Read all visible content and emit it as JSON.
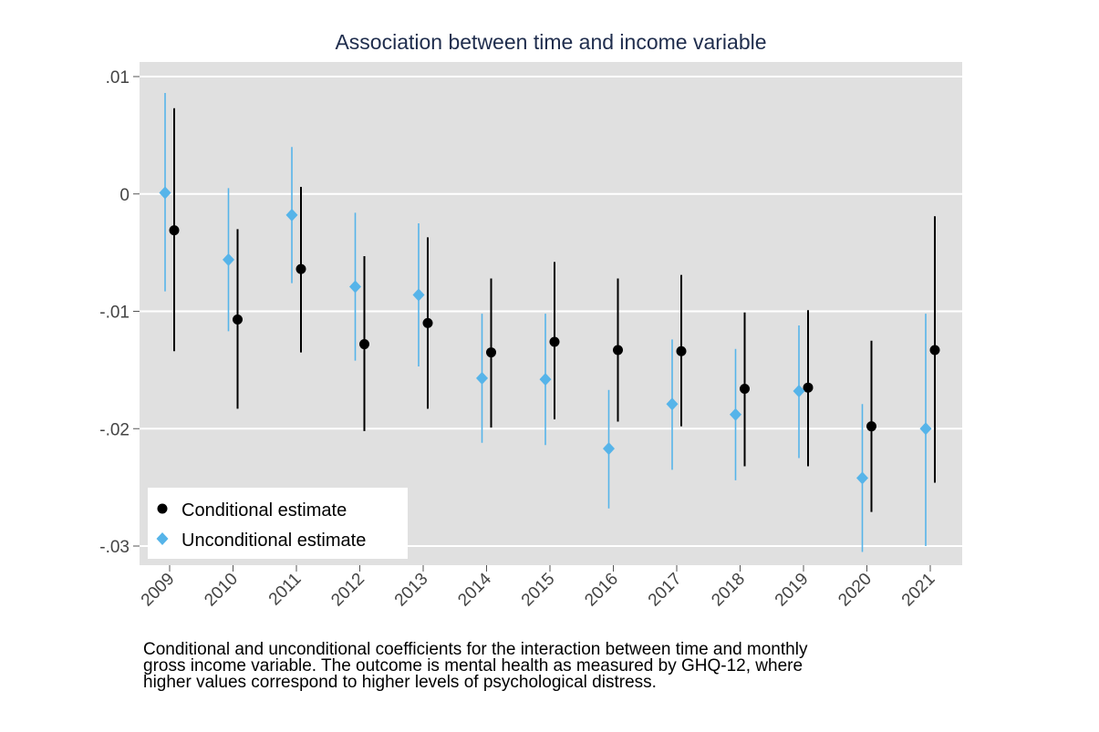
{
  "chart_data": {
    "type": "scatter",
    "title": "Association between time and income variable",
    "xlabel": "",
    "ylabel": "",
    "categories": [
      "2009",
      "2010",
      "2011",
      "2012",
      "2013",
      "2014",
      "2015",
      "2016",
      "2017",
      "2018",
      "2019",
      "2020",
      "2021"
    ],
    "ylim": [
      -0.032,
      0.0115
    ],
    "yticks": [
      0.01,
      0,
      -0.01,
      -0.02,
      -0.03
    ],
    "ytick_labels": [
      ".01",
      "0",
      "-.01",
      "-.02",
      "-.03"
    ],
    "grid": true,
    "legend_position": "bottom-left",
    "series": [
      {
        "name": "Conditional estimate",
        "marker": "circle",
        "color": "#000000",
        "values": [
          -0.0031,
          -0.0107,
          -0.0064,
          -0.0128,
          -0.011,
          -0.0135,
          -0.0126,
          -0.0133,
          -0.0134,
          -0.0166,
          -0.0165,
          -0.0198,
          -0.0133
        ],
        "ci_low": [
          -0.0134,
          -0.0183,
          -0.0135,
          -0.0202,
          -0.0183,
          -0.0199,
          -0.0192,
          -0.0194,
          -0.0198,
          -0.0232,
          -0.0232,
          -0.0271,
          -0.0246
        ],
        "ci_high": [
          0.0073,
          -0.003,
          0.0006,
          -0.0053,
          -0.0037,
          -0.0072,
          -0.0058,
          -0.0072,
          -0.0069,
          -0.0101,
          -0.0099,
          -0.0125,
          -0.0019
        ]
      },
      {
        "name": "Unconditional estimate",
        "marker": "diamond",
        "color": "#56b4e9",
        "values": [
          0.0001,
          -0.0056,
          -0.0018,
          -0.0079,
          -0.0086,
          -0.0157,
          -0.0158,
          -0.0217,
          -0.0179,
          -0.0188,
          -0.0168,
          -0.0242,
          -0.02
        ],
        "ci_low": [
          -0.0083,
          -0.0117,
          -0.0076,
          -0.0142,
          -0.0147,
          -0.0212,
          -0.0214,
          -0.0268,
          -0.0235,
          -0.0244,
          -0.0225,
          -0.0305,
          -0.03
        ],
        "ci_high": [
          0.0086,
          0.0005,
          0.004,
          -0.0016,
          -0.0025,
          -0.0102,
          -0.0102,
          -0.0167,
          -0.0124,
          -0.0132,
          -0.0112,
          -0.0179,
          -0.0102
        ]
      }
    ]
  },
  "caption": {
    "line1": "Conditional and unconditional coefficients for the interaction between time and monthly",
    "line2": "gross income variable. The outcome is mental health as measured by GHQ-12, where",
    "line3": "higher values correspond to higher levels of psychological distress."
  },
  "colors": {
    "plot_background": "#e0e0e0",
    "gridline": "#ffffff",
    "title": "#1f2d4d"
  }
}
